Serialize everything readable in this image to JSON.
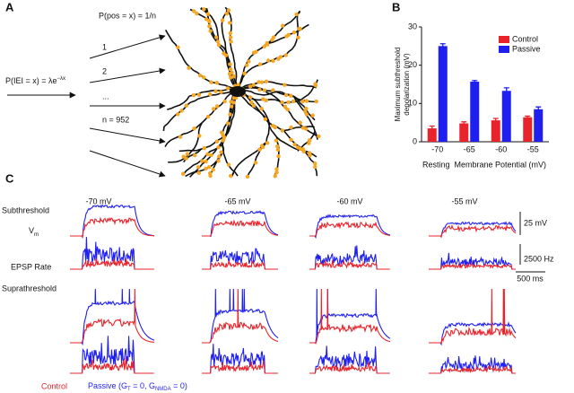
{
  "panel_labels": [
    "A",
    "B",
    "C"
  ],
  "panel_a": {
    "interval_label": [
      "P(IEI = x) = λe",
      "−λx"
    ],
    "position_label": "P(pos = x) = 1/n",
    "arrow_labels": [
      "1",
      "2",
      "...",
      "n = 952"
    ]
  },
  "chart_data": {
    "type": "bar",
    "ylabel": [
      "Maximum subthreshold",
      "depolarization (mV)"
    ],
    "xlabel": "Resting  Membrane Potential (mV)",
    "categories": [
      "-70",
      "-65",
      "-60",
      "-55"
    ],
    "series": [
      {
        "name": "Control",
        "color": "#e8232a",
        "values": [
          3.5,
          4.8,
          5.6,
          6.4
        ],
        "errors": [
          0.6,
          0.4,
          0.5,
          0.3
        ]
      },
      {
        "name": "Passive",
        "color": "#1f1ff0",
        "values": [
          25,
          15.7,
          13.3,
          8.5
        ],
        "errors": [
          0.6,
          0.3,
          0.8,
          0.6
        ]
      }
    ],
    "ylim": [
      0,
      30
    ],
    "yticks": [
      0,
      10,
      20,
      30
    ],
    "legend": "upper right"
  },
  "panel_c": {
    "columns": [
      "-70 mV",
      "-65 mV",
      "-60 mV",
      "-55 mV"
    ],
    "rows": [
      "Subthreshold",
      "Suprathreshold"
    ],
    "vm_label": [
      "V",
      "m"
    ],
    "rate_label": "EPSP Rate",
    "scale_bars": [
      "25 mV",
      "2500 Hz",
      "500 ms"
    ],
    "legend": {
      "control": "Control",
      "passive": [
        "Passive (G",
        "T",
        " = 0, G",
        "NMDA",
        " = 0)"
      ]
    }
  }
}
